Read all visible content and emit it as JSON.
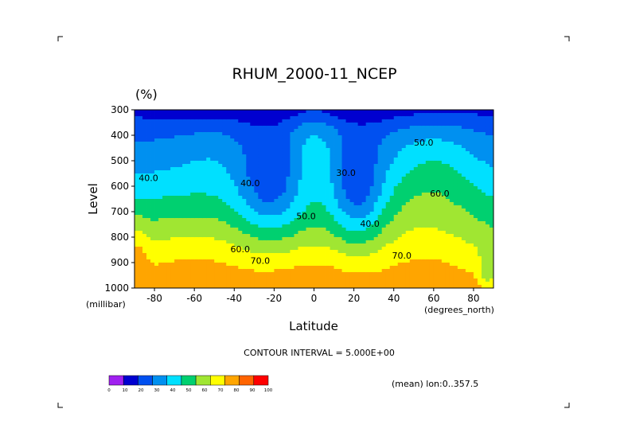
{
  "chart_data": {
    "type": "contour",
    "title": "RHUM_2000-11_NCEP",
    "units": "(%)",
    "xlabel": "Latitude",
    "ylabel": "Level",
    "x_unit": "(degrees_north)",
    "y_unit": "(millibar)",
    "xlim": [
      -90,
      90
    ],
    "ylim": [
      1000,
      300
    ],
    "x_ticks": [
      "-80",
      "-60",
      "-40",
      "-20",
      "0",
      "20",
      "40",
      "60",
      "80"
    ],
    "y_ticks": [
      "300",
      "400",
      "500",
      "600",
      "700",
      "800",
      "900",
      "1000"
    ],
    "contour_interval_text": "CONTOUR INTERVAL = 5.000E+00",
    "mean_text": "(mean) lon:0..357.5",
    "contour_labels": [
      {
        "text": "50.0",
        "lat": 55,
        "lev": 440
      },
      {
        "text": "40.0",
        "lat": -83,
        "lev": 580
      },
      {
        "text": "40.0",
        "lat": -32,
        "lev": 600
      },
      {
        "text": "30.0",
        "lat": 16,
        "lev": 560
      },
      {
        "text": "60.0",
        "lat": 63,
        "lev": 640
      },
      {
        "text": "50.0",
        "lat": -4,
        "lev": 730
      },
      {
        "text": "40.0",
        "lat": 28,
        "lev": 760
      },
      {
        "text": "60.0",
        "lat": -37,
        "lev": 860
      },
      {
        "text": "70.0",
        "lat": -27,
        "lev": 905
      },
      {
        "text": "70.0",
        "lat": 44,
        "lev": 885
      }
    ],
    "colorbar": {
      "labels": [
        "0",
        "10",
        "20",
        "30",
        "40",
        "50",
        "60",
        "70",
        "80",
        "90",
        "100"
      ],
      "colors": [
        "#a020f0",
        "#0000d0",
        "#0050f0",
        "#0090f0",
        "#00e0ff",
        "#00d070",
        "#a0e632",
        "#ffff00",
        "#ffa500",
        "#ff6400",
        "#ff0000"
      ]
    },
    "grid": false
  }
}
